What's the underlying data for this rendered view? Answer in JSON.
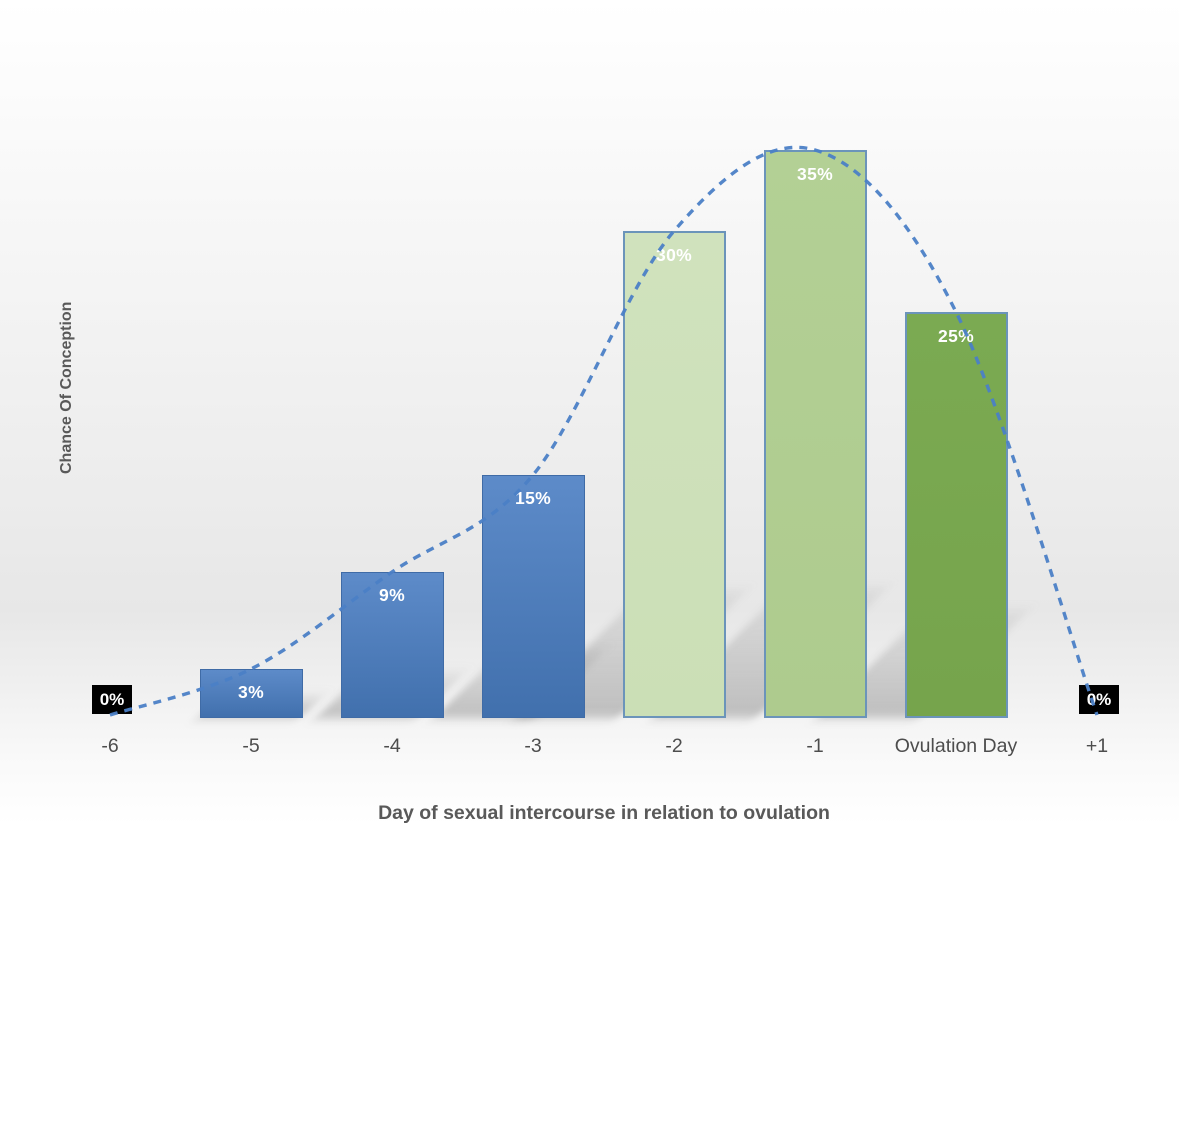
{
  "chart_data": {
    "type": "bar",
    "title": "",
    "xlabel": "Day of sexual intercourse in relation to ovulation",
    "ylabel": "Chance Of Conception",
    "categories": [
      "-6",
      "-5",
      "-4",
      "-3",
      "-2",
      "-1",
      "Ovulation Day",
      "+1"
    ],
    "values": [
      0,
      3,
      9,
      15,
      30,
      35,
      25,
      0
    ],
    "data_labels": [
      "0%",
      "3%",
      "9%",
      "15%",
      "30%",
      "35%",
      "25%",
      "0%"
    ],
    "ylim": [
      0,
      37
    ],
    "grid": false,
    "legend": false,
    "label_color": "#ffffff",
    "bar_fills": [
      {
        "type": "zero-box",
        "bg": "#000000",
        "text": "#ffffff"
      },
      {
        "type": "bar",
        "top": "#5d8bc9",
        "bottom": "#4170ad",
        "border": "#3f6ba6",
        "border_w": 1
      },
      {
        "type": "bar",
        "top": "#5d8bc9",
        "bottom": "#4170ad",
        "border": "#3f6ba6",
        "border_w": 1
      },
      {
        "type": "bar",
        "top": "#5d8bc9",
        "bottom": "#4170ad",
        "border": "#3f6ba6",
        "border_w": 1
      },
      {
        "type": "bar",
        "top": "#d0e2bd",
        "bottom": "#cbdfb6",
        "border": "#6b94ba",
        "border_w": 2
      },
      {
        "type": "bar",
        "top": "#b3d095",
        "bottom": "#aecb8e",
        "border": "#6b94ba",
        "border_w": 2
      },
      {
        "type": "bar",
        "top": "#7baa52",
        "bottom": "#76a44c",
        "border": "#6b94ba",
        "border_w": 2
      },
      {
        "type": "zero-box",
        "bg": "#000000",
        "text": "#ffffff"
      }
    ],
    "trendline": {
      "style": "dashed",
      "color": "#4b80c6"
    }
  }
}
